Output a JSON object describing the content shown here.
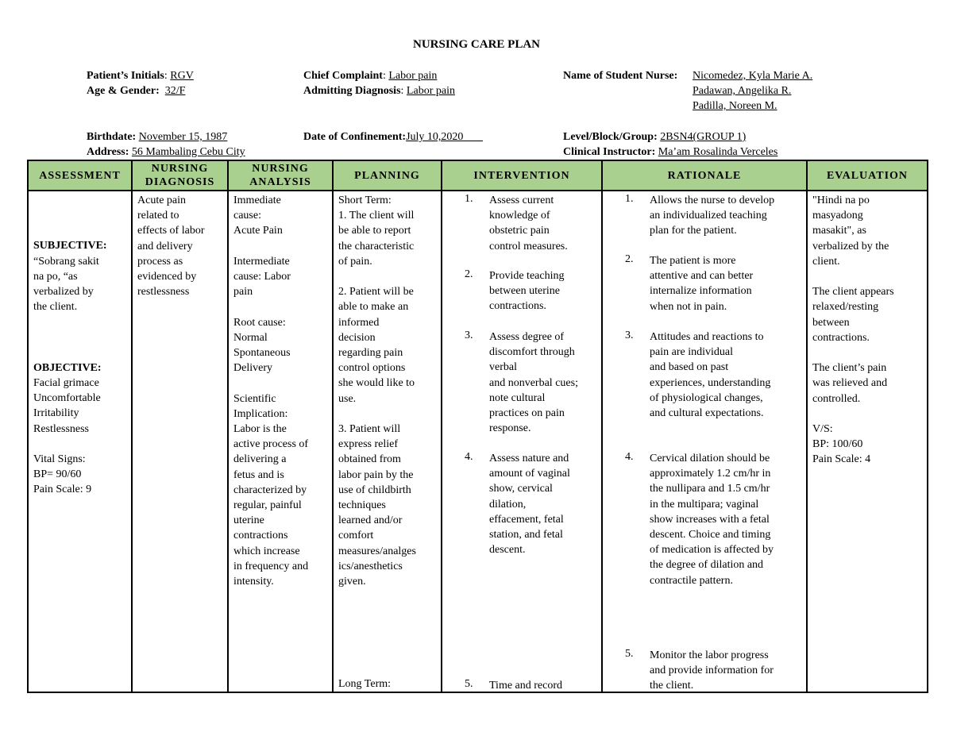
{
  "title": "NURSING CARE PLAN",
  "header": {
    "patient_initials_label": "Patient’s Initials",
    "patient_initials": "RGV",
    "age_gender_label": "Age & Gender:",
    "age_gender": "32/F",
    "chief_complaint_label": "Chief Complaint",
    "chief_complaint": "Labor pain",
    "admitting_diagnosis_label": "Admitting Diagnosis",
    "admitting_diagnosis": "Labor pain",
    "student_nurse_label": "Name of Student Nurse:",
    "student_nurses": [
      "Nicomedez, Kyla Marie A.",
      "Padawan, Angelika R.",
      "Padilla, Noreen M."
    ],
    "birthdate_label": "Birthdate:",
    "birthdate": "November 15, 1987",
    "address_label": "Address:",
    "address": "56 Mambaling Cebu City",
    "confinement_label": "Date of Confinement:",
    "confinement": "July 10,2020",
    "level_label": "Level/Block/Group:",
    "level": "2BSN4(GROUP 1)",
    "instructor_label": "Clinical Instructor:",
    "instructor": "Ma’am Rosalinda Verceles"
  },
  "table": {
    "header_color": "#a9d08e",
    "columns": [
      "ASSESSMENT",
      "NURSING\nDIAGNOSIS",
      "NURSING\nANALYSIS",
      "PLANNING",
      "INTERVENTION",
      "RATIONALE",
      "EVALUATION"
    ],
    "assessment": {
      "subjective_label": "SUBJECTIVE:",
      "subjective": "“Sobrang sakit\nna po, “as\nverbalized by\nthe client.",
      "objective_label": "OBJECTIVE:",
      "objective": "Facial grimace\nUncomfortable\nIrritability\nRestlessness\n\nVital Signs:\nBP= 90/60\nPain Scale: 9"
    },
    "diagnosis": "Acute pain\nrelated to\neffects of labor\nand delivery\nprocess as\nevidenced by\nrestlessness",
    "analysis": "Immediate\ncause:\nAcute Pain\n\nIntermediate\ncause: Labor\npain\n\nRoot cause:\nNormal\nSpontaneous\nDelivery\n\nScientific\nImplication:\nLabor is the\nactive process of\ndelivering a\nfetus and is\ncharacterized by\nregular, painful\nuterine\ncontractions\nwhich increase\nin frequency and\nintensity.",
    "planning": "Short Term:\n1. The client will\nbe able to report\nthe characteristic\nof pain.\n\n2. Patient will be\nable to make an\ninformed\ndecision\nregarding pain\ncontrol options\nshe would like to\nuse.\n\n3. Patient will\nexpress relief\nobtained from\nlabor pain by the\nuse of childbirth\ntechniques\nlearned and/or\ncomfort\nmeasures/analges\nics/anesthetics\ngiven.",
    "planning_long_term": "Long Term:",
    "interventions": [
      {
        "num": "1.",
        "text": "Assess current\nknowledge of\nobstetric pain\ncontrol measures."
      },
      {
        "num": "2.",
        "text": "Provide teaching\nbetween uterine\ncontractions."
      },
      {
        "num": "3.",
        "text": "Assess degree of\ndiscomfort through\nverbal\nand nonverbal cues;\nnote cultural\npractices on pain\nresponse."
      },
      {
        "num": "4.",
        "text": "Assess nature and\namount of vaginal\nshow, cervical\ndilation,\neffacement, fetal\nstation, and fetal\ndescent."
      },
      {
        "num": "5.",
        "text": "Time and record"
      }
    ],
    "rationales": [
      {
        "num": "1.",
        "text": "Allows the nurse to develop\nan individualized teaching\nplan for the patient."
      },
      {
        "num": "2.",
        "text": "The patient is more\nattentive and can better\ninternalize information\nwhen not in pain."
      },
      {
        "num": "3.",
        "text": "Attitudes and reactions to\npain are individual\nand based on past\nexperiences, understanding\nof physiological changes,\nand cultural expectations."
      },
      {
        "num": "4.",
        "text": "Cervical dilation should be\napproximately 1.2 cm/hr in\nthe nullipara and 1.5 cm/hr\nin the multipara; vaginal\nshow increases with a fetal\ndescent. Choice and timing\nof medication is affected by\nthe degree of dilation and\ncontractile pattern."
      },
      {
        "num": "5.",
        "text": "Monitor the labor progress\nand provide information for\nthe client."
      }
    ],
    "evaluation": "\"Hindi na po\nmasyadong\nmasakit\", as\nverbalized by the\nclient.\n\nThe client appears\nrelaxed/resting\nbetween\ncontractions.\n\nThe client’s pain\nwas relieved and\ncontrolled.\n\nV/S:\nBP: 100/60\nPain Scale: 4"
  }
}
